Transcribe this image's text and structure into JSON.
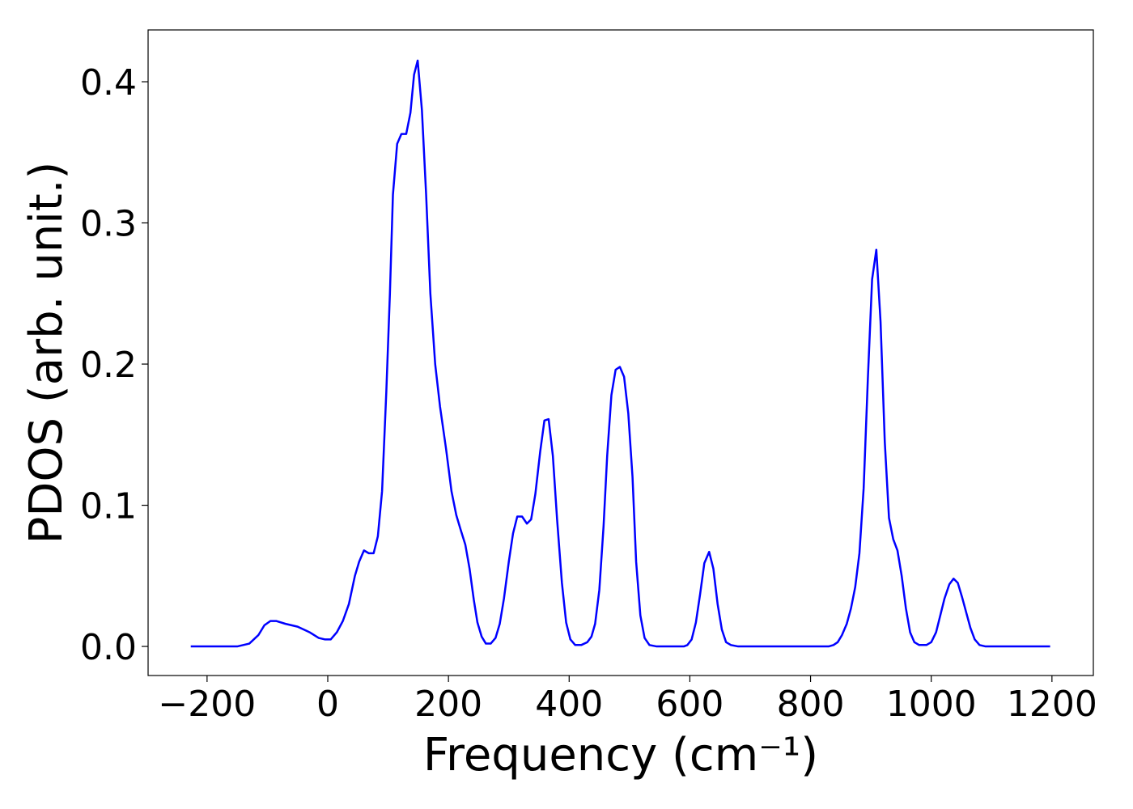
{
  "chart_data": {
    "type": "line",
    "x_label": "Frequency (cm⁻¹)",
    "y_label": "PDOS (arb. unit.)",
    "color": "#0000ff",
    "x": [
      -227,
      -150,
      -130,
      -115,
      -105,
      -95,
      -85,
      -70,
      -50,
      -30,
      -15,
      -5,
      5,
      15,
      25,
      35,
      45,
      52,
      60,
      68,
      76,
      83,
      90,
      97,
      103,
      108,
      115,
      122,
      130,
      137,
      143,
      149,
      156,
      163,
      170,
      178,
      186,
      196,
      205,
      213,
      220,
      228,
      235,
      242,
      248,
      255,
      262,
      270,
      278,
      285,
      292,
      300,
      307,
      314,
      322,
      330,
      337,
      344,
      352,
      359,
      366,
      373,
      380,
      388,
      395,
      402,
      410,
      420,
      430,
      437,
      443,
      450,
      457,
      463,
      470,
      477,
      484,
      491,
      498,
      505,
      511,
      518,
      525,
      533,
      545,
      590,
      596,
      603,
      610,
      617,
      624,
      632,
      639,
      646,
      653,
      660,
      668,
      680,
      830,
      838,
      845,
      852,
      860,
      867,
      874,
      881,
      888,
      895,
      902,
      909,
      916,
      923,
      930,
      937,
      944,
      951,
      958,
      965,
      972,
      980,
      992,
      1000,
      1008,
      1015,
      1022,
      1030,
      1037,
      1044,
      1051,
      1058,
      1065,
      1072,
      1080,
      1090,
      1197
    ],
    "values": [
      0,
      0,
      0.002,
      0.008,
      0.015,
      0.018,
      0.018,
      0.016,
      0.014,
      0.01,
      0.006,
      0.005,
      0.005,
      0.01,
      0.018,
      0.03,
      0.05,
      0.06,
      0.068,
      0.066,
      0.066,
      0.078,
      0.11,
      0.18,
      0.25,
      0.32,
      0.356,
      0.363,
      0.363,
      0.378,
      0.405,
      0.415,
      0.38,
      0.32,
      0.25,
      0.2,
      0.17,
      0.14,
      0.11,
      0.093,
      0.083,
      0.072,
      0.055,
      0.033,
      0.017,
      0.007,
      0.002,
      0.002,
      0.006,
      0.016,
      0.034,
      0.06,
      0.08,
      0.092,
      0.092,
      0.087,
      0.09,
      0.108,
      0.138,
      0.16,
      0.161,
      0.135,
      0.09,
      0.045,
      0.017,
      0.005,
      0.001,
      0.001,
      0.003,
      0.007,
      0.016,
      0.04,
      0.085,
      0.135,
      0.178,
      0.196,
      0.198,
      0.191,
      0.165,
      0.12,
      0.06,
      0.022,
      0.006,
      0.001,
      0,
      0,
      0.001,
      0.005,
      0.017,
      0.037,
      0.059,
      0.067,
      0.055,
      0.03,
      0.012,
      0.003,
      0.001,
      0,
      0,
      0.001,
      0.003,
      0.008,
      0.016,
      0.027,
      0.042,
      0.066,
      0.112,
      0.19,
      0.26,
      0.281,
      0.23,
      0.145,
      0.091,
      0.076,
      0.068,
      0.05,
      0.027,
      0.01,
      0.003,
      0.001,
      0.001,
      0.003,
      0.01,
      0.022,
      0.034,
      0.044,
      0.048,
      0.045,
      0.035,
      0.024,
      0.013,
      0.005,
      0.001,
      0,
      0
    ],
    "xlim": [
      -297.7,
      1268.6
    ],
    "ylim": [
      -0.0206,
      0.4367
    ],
    "xticks": [
      {
        "value": -200,
        "label": "−200"
      },
      0,
      200,
      400,
      600,
      800,
      1000,
      1200
    ],
    "yticks": [
      {
        "value": 0,
        "label": "0.0"
      },
      0.1,
      0.2,
      0.3,
      0.4
    ]
  }
}
